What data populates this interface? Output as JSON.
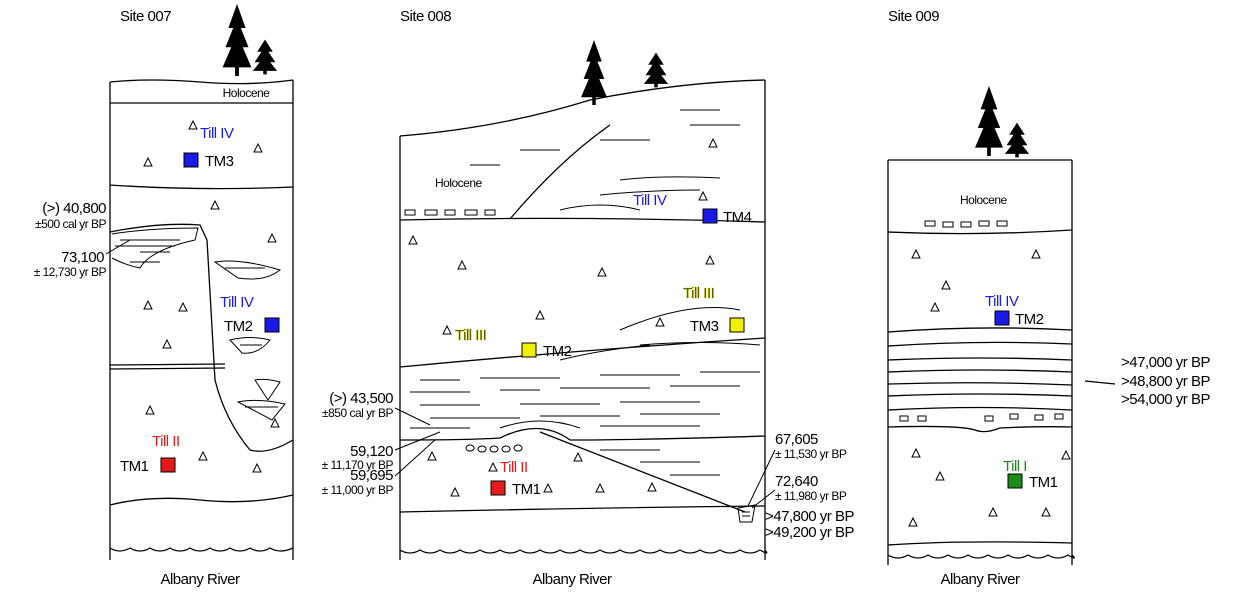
{
  "sites": [
    {
      "title": "Site 007",
      "holocene": "Holocene",
      "river": "Albany River",
      "samples": [
        {
          "till": "Till IV",
          "label": "TM3"
        },
        {
          "till": "Till IV",
          "label": "TM2"
        },
        {
          "till": "Till II",
          "label": "TM1"
        }
      ],
      "dates": [
        {
          "age": "(>) 40,800",
          "error": "±500 cal yr BP"
        },
        {
          "age": "73,100",
          "error": "± 12,730 yr BP"
        }
      ]
    },
    {
      "title": "Site 008",
      "holocene": "Holocene",
      "river": "Albany River",
      "samples": [
        {
          "till": "Till IV",
          "label": "TM4"
        },
        {
          "till": "Till III",
          "label": "TM3"
        },
        {
          "till": "Till III",
          "label": "TM2"
        },
        {
          "till": "Till II",
          "label": "TM1"
        }
      ],
      "dates": [
        {
          "age": "(>) 43,500",
          "error": "±850 cal yr BP"
        },
        {
          "age": "59,120",
          "error": "± 11,170 yr BP"
        },
        {
          "age": "59,695",
          "error": "± 11,000 yr BP"
        },
        {
          "age": "67,605",
          "error": "± 11,530 yr BP"
        },
        {
          "age": "72,640",
          "error": "± 11,980 yr BP"
        }
      ],
      "limits": [
        ">47,800 yr BP",
        ">49,200 yr BP"
      ]
    },
    {
      "title": "Site 009",
      "holocene": "Holocene",
      "river": "Albany River",
      "samples": [
        {
          "till": "Till IV",
          "label": "TM2"
        },
        {
          "till": "Till I",
          "label": "TM1"
        }
      ],
      "limits": [
        ">47,000 yr BP",
        ">48,800 yr BP",
        ">54,000 yr BP"
      ]
    }
  ]
}
